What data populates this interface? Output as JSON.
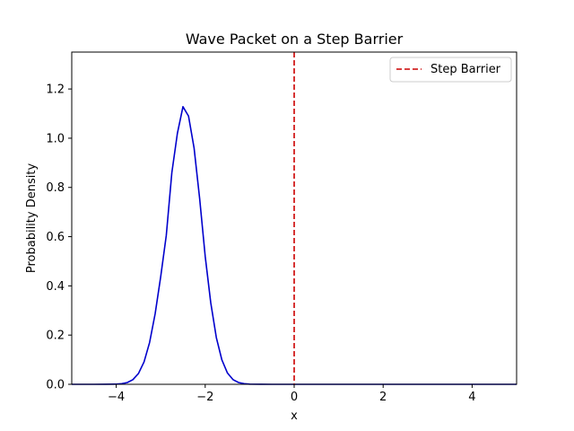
{
  "chart_data": {
    "type": "line",
    "title": "Wave Packet on a Step Barrier",
    "xlabel": "x",
    "ylabel": "Probability Density",
    "xlim": [
      -5,
      5
    ],
    "ylim": [
      0,
      1.35
    ],
    "x_ticks": [
      -4,
      -2,
      0,
      2,
      4
    ],
    "x_tick_labels": [
      "−4",
      "−2",
      "0",
      "2",
      "4"
    ],
    "y_ticks": [
      0.0,
      0.2,
      0.4,
      0.6,
      0.8,
      1.0,
      1.2
    ],
    "y_tick_labels": [
      "0.0",
      "0.2",
      "0.4",
      "0.6",
      "0.8",
      "1.0",
      "1.2"
    ],
    "grid": false,
    "legend_position": "top-right",
    "series": [
      {
        "color": "#0000cc",
        "x": [
          -5.0,
          -4.5,
          -4.25,
          -4.0,
          -3.875,
          -3.75,
          -3.625,
          -3.5,
          -3.375,
          -3.25,
          -3.125,
          -3.0,
          -2.875,
          -2.75,
          -2.625,
          -2.5,
          -2.375,
          -2.25,
          -2.125,
          -2.0,
          -1.875,
          -1.75,
          -1.625,
          -1.5,
          -1.375,
          -1.25,
          -1.125,
          -1.0,
          -0.75,
          -0.5,
          0.0,
          1.0,
          2.0,
          3.0,
          4.0,
          5.0
        ],
        "y": [
          0.0,
          0.0,
          0.0001,
          0.0007,
          0.0025,
          0.0073,
          0.019,
          0.044,
          0.091,
          0.17,
          0.287,
          0.438,
          0.605,
          0.86,
          1.02,
          1.128,
          1.09,
          0.96,
          0.755,
          0.52,
          0.331,
          0.19,
          0.099,
          0.046,
          0.019,
          0.0073,
          0.0025,
          0.0007,
          0.0001,
          0.0,
          0.0,
          0.0,
          0.0,
          0.0,
          0.0,
          0.0
        ]
      }
    ],
    "barrier": {
      "name": "Step Barrier",
      "x": 0,
      "color": "#cc0000",
      "style": "dashed"
    }
  }
}
